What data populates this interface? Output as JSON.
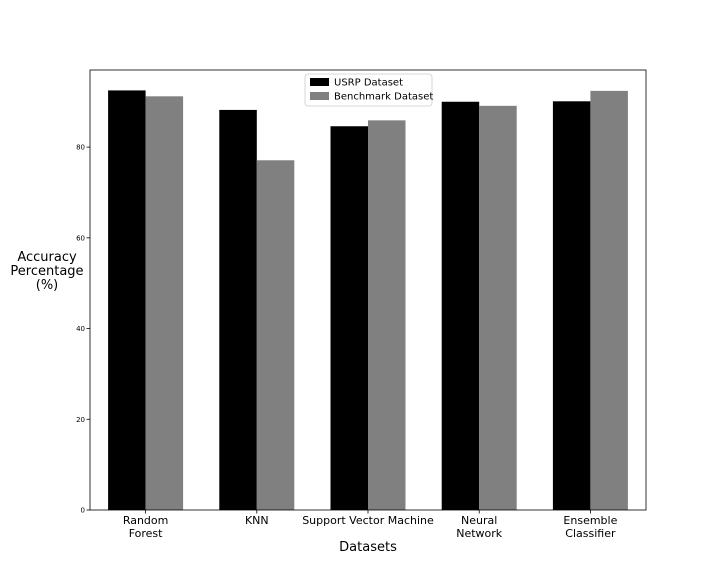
{
  "chart_data": {
    "type": "bar",
    "categories": [
      [
        "Random",
        "Forest"
      ],
      [
        "KNN"
      ],
      [
        "Support Vector Machine"
      ],
      [
        "Neural",
        "Network"
      ],
      [
        "Ensemble",
        "Classifier"
      ]
    ],
    "series": [
      {
        "name": "USRP Dataset",
        "color": "#000000",
        "values": [
          92.5,
          88.2,
          84.6,
          90.0,
          90.1
        ]
      },
      {
        "name": "Benchmark Dataset",
        "color": "#808080",
        "values": [
          91.2,
          77.1,
          85.9,
          89.1,
          92.4
        ]
      }
    ],
    "xlabel": "Datasets",
    "ylabel": [
      "Accuracy",
      "Percentage",
      "(%)"
    ],
    "ylim": [
      0,
      97
    ],
    "yticks": [
      0,
      20,
      40,
      60,
      80
    ],
    "grid": false,
    "legend_position": "top-center"
  }
}
